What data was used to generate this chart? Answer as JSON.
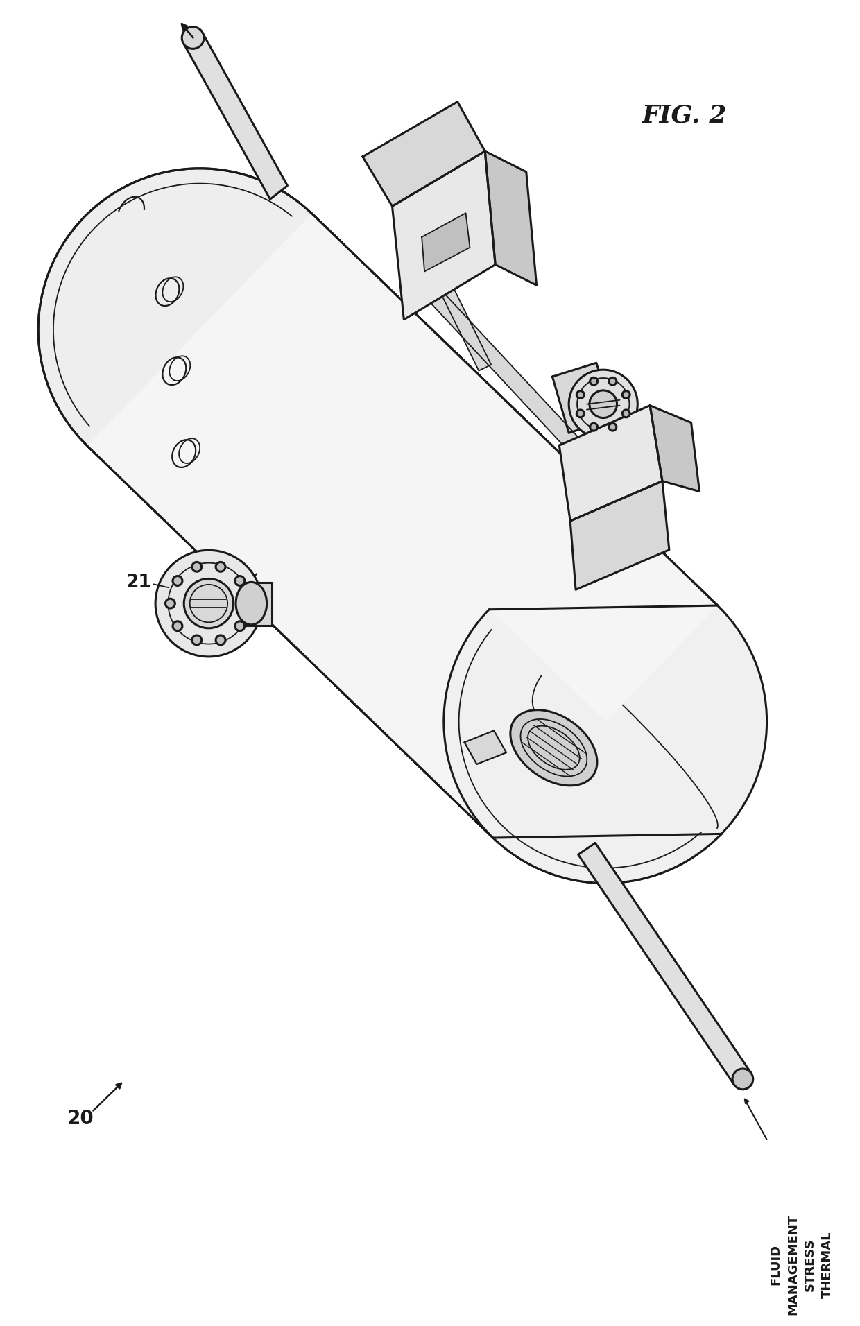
{
  "fig_label": "FIG. 2",
  "label_20": "20",
  "label_21": "21",
  "label_fluid": [
    "THERMAL",
    "STRESS",
    "MANAGEMENT",
    "FLUID"
  ],
  "bg_color": "#ffffff",
  "lc": "#1a1a1a",
  "fill_body": "#f5f5f5",
  "fill_cap_left": "#eeeeee",
  "fill_cap_right": "#f0f0f0",
  "fill_bracket": "#e8e8e8",
  "fill_bracket_top": "#d8d8d8",
  "fill_bracket_side": "#c8c8c8",
  "fill_flange": "#e0e0e0",
  "fill_pipe": "#e0e0e0",
  "lw": 2.2,
  "lw_thin": 1.3
}
